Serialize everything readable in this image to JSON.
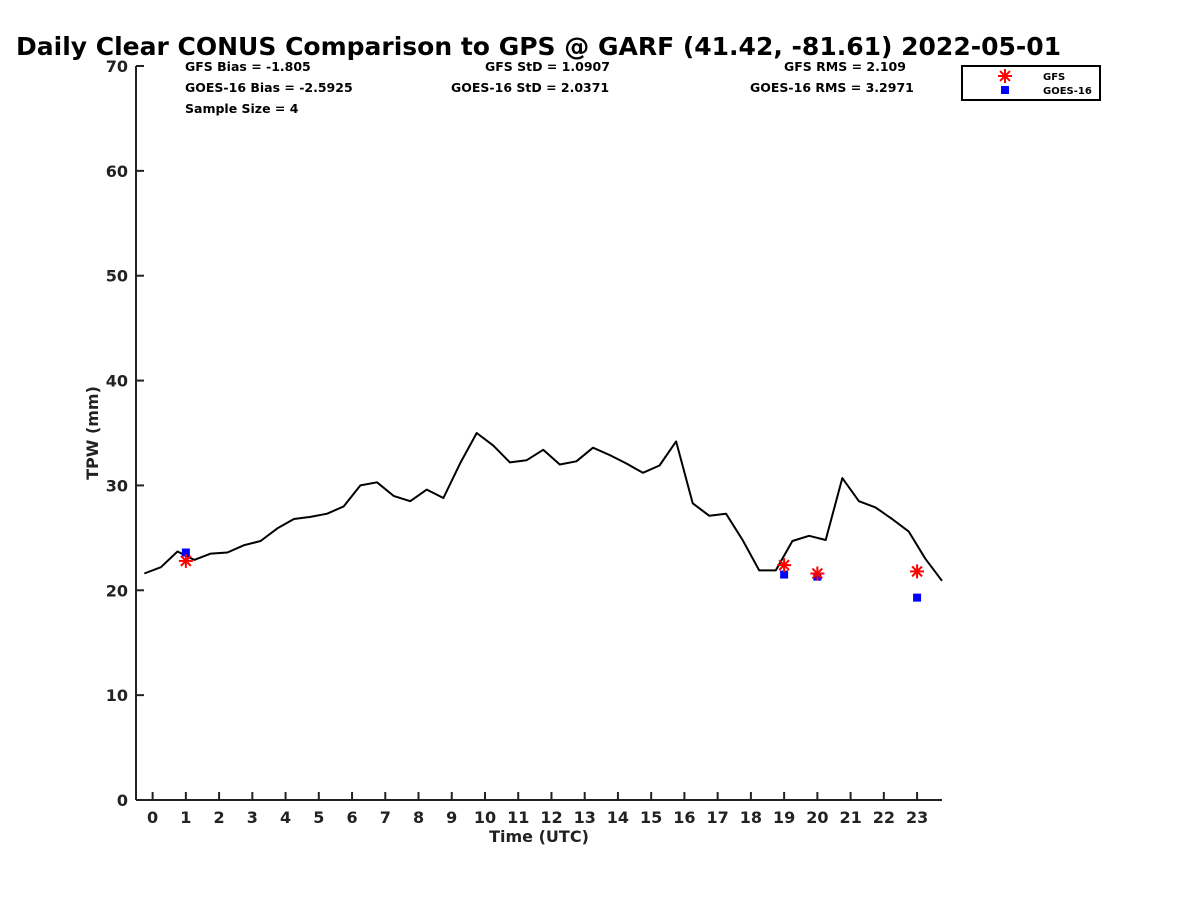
{
  "chart_data": {
    "type": "line",
    "title": "Daily Clear CONUS Comparison to GPS @ GARF (41.42, -81.61) 2022-05-01",
    "xlabel": "Time (UTC)",
    "ylabel": "TPW (mm)",
    "xlim": [
      -0.5,
      23.75
    ],
    "ylim": [
      0,
      70
    ],
    "xticks": [
      0,
      1,
      2,
      3,
      4,
      5,
      6,
      7,
      8,
      9,
      10,
      11,
      12,
      13,
      14,
      15,
      16,
      17,
      18,
      19,
      20,
      21,
      22,
      23
    ],
    "yticks": [
      0,
      10,
      20,
      30,
      40,
      50,
      60,
      70
    ],
    "grid": false,
    "legend_position": "top-right",
    "stats": {
      "gfs_bias": "GFS Bias = -1.805",
      "goes_bias": "GOES-16 Bias = -2.5925",
      "sample_size": "Sample Size = 4",
      "gfs_std": "GFS StD = 1.0907",
      "goes_std": "GOES-16 StD = 2.0371",
      "gfs_rms": "GFS RMS = 2.109",
      "goes_rms": "GOES-16 RMS = 3.2971"
    },
    "series": [
      {
        "style": "line",
        "color": "#000000",
        "x": [
          -0.25,
          0.25,
          0.75,
          1.25,
          1.75,
          2.25,
          2.75,
          3.25,
          3.75,
          4.25,
          4.75,
          5.25,
          5.75,
          6.25,
          6.75,
          7.25,
          7.75,
          8.25,
          8.75,
          9.25,
          9.75,
          10.25,
          10.75,
          11.25,
          11.75,
          12.25,
          12.75,
          13.25,
          13.75,
          14.25,
          14.75,
          15.25,
          15.75,
          16.25,
          16.75,
          17.25,
          17.75,
          18.25,
          18.75,
          19.25,
          19.75,
          20.25,
          20.75,
          21.25,
          21.75,
          22.25,
          22.75,
          23.25,
          23.75
        ],
        "y": [
          21.6,
          22.2,
          23.7,
          22.9,
          23.5,
          23.6,
          24.3,
          24.7,
          25.9,
          26.8,
          27.0,
          27.3,
          28.0,
          30.0,
          30.3,
          29.0,
          28.5,
          29.6,
          28.8,
          32.1,
          35.0,
          33.8,
          32.2,
          32.4,
          33.4,
          32.0,
          32.3,
          33.6,
          32.9,
          32.1,
          31.2,
          31.9,
          34.2,
          28.3,
          27.1,
          27.3,
          24.8,
          21.9,
          21.9,
          24.7,
          25.2,
          24.8,
          30.7,
          28.5,
          27.9,
          26.8,
          25.6,
          23.0,
          20.9
        ]
      },
      {
        "name": "GFS",
        "style": "asterisk",
        "color": "#ff0000",
        "x": [
          1,
          19,
          20,
          23
        ],
        "y": [
          22.8,
          22.4,
          21.6,
          21.8
        ]
      },
      {
        "name": "GOES-16",
        "style": "square",
        "color": "#0000ff",
        "x": [
          1,
          19,
          20,
          23
        ],
        "y": [
          23.6,
          21.5,
          21.3,
          19.3
        ]
      }
    ]
  }
}
